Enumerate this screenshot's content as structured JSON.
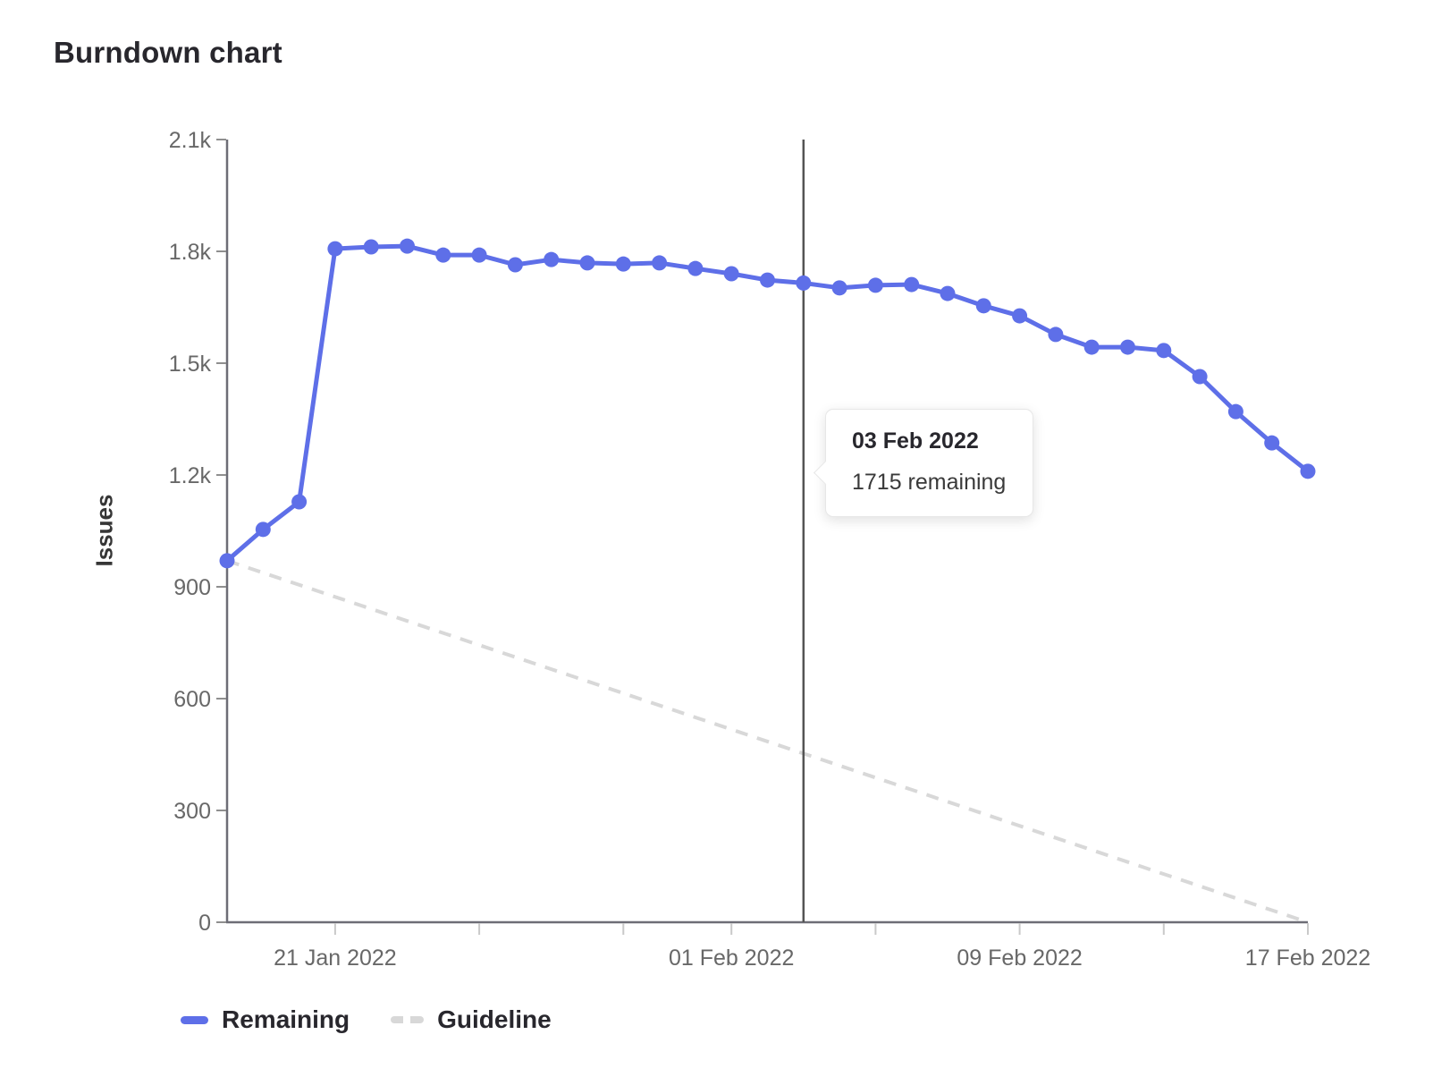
{
  "title": "Burndown chart",
  "tooltip": {
    "date": "03 Feb 2022",
    "text": "1715 remaining"
  },
  "legend": {
    "remaining_label": "Remaining",
    "guideline_label": "Guideline"
  },
  "colors": {
    "remaining": "#5e6fe8",
    "guideline": "#d8d8d8",
    "today_line": "#545454",
    "axis_line": "#6d6d76",
    "y_tick": "#8f8f8f",
    "x_tick": "#c9c9c9",
    "tick_label": "#686868"
  },
  "chart_data": {
    "type": "line",
    "title": "Burndown chart",
    "xlabel": "",
    "ylabel": "Issues",
    "ylim": [
      0,
      2100
    ],
    "ytick_interval": 300,
    "ytick_labels": [
      "0",
      "300",
      "600",
      "900",
      "1.2k",
      "1.5k",
      "1.8k",
      "2.1k"
    ],
    "grid": false,
    "legend_position": "bottom-left",
    "x": [
      "18 Jan 2022",
      "19 Jan 2022",
      "20 Jan 2022",
      "21 Jan 2022",
      "22 Jan 2022",
      "23 Jan 2022",
      "24 Jan 2022",
      "25 Jan 2022",
      "26 Jan 2022",
      "27 Jan 2022",
      "28 Jan 2022",
      "29 Jan 2022",
      "30 Jan 2022",
      "31 Jan 2022",
      "01 Feb 2022",
      "02 Feb 2022",
      "03 Feb 2022",
      "04 Feb 2022",
      "05 Feb 2022",
      "06 Feb 2022",
      "07 Feb 2022",
      "08 Feb 2022",
      "09 Feb 2022",
      "10 Feb 2022",
      "11 Feb 2022",
      "12 Feb 2022",
      "13 Feb 2022",
      "14 Feb 2022",
      "15 Feb 2022",
      "16 Feb 2022",
      "17 Feb 2022"
    ],
    "xtick_indices": [
      3,
      7,
      11,
      14,
      18,
      22,
      26,
      30
    ],
    "xtick_labels": {
      "3": "21 Jan 2022",
      "14": "01 Feb 2022",
      "22": "09 Feb 2022",
      "30": "17 Feb 2022"
    },
    "series": [
      {
        "name": "Remaining",
        "style": "solid",
        "color": "#5e6fe8",
        "points": true,
        "values": [
          970,
          1054,
          1128,
          1807,
          1812,
          1814,
          1790,
          1790,
          1764,
          1778,
          1769,
          1766,
          1769,
          1754,
          1740,
          1723,
          1715,
          1702,
          1709,
          1711,
          1687,
          1654,
          1627,
          1577,
          1543,
          1543,
          1534,
          1464,
          1370,
          1286,
          1210
        ]
      },
      {
        "name": "Guideline",
        "style": "dashed",
        "color": "#d8d8d8",
        "points": false,
        "values": [
          970,
          0
        ]
      }
    ],
    "today_marker": {
      "index": 16,
      "date": "03 Feb 2022",
      "value": 1715
    }
  }
}
